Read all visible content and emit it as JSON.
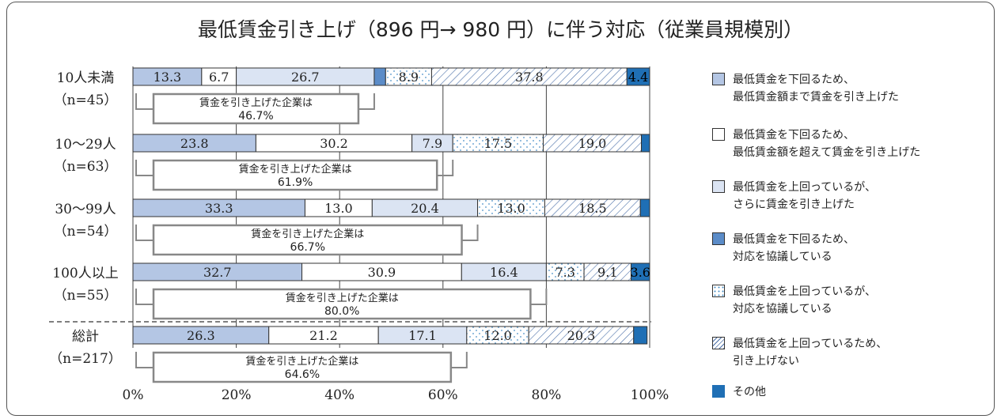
{
  "title": "最低賃金引き上げ（896 円→ 980 円）に伴う対応（従業員規模別）",
  "colors": {
    "seg1": "#b4c6e4",
    "seg2": "#ffffff",
    "seg3": "#dbe4f3",
    "seg4": "#5b8cc8",
    "seg5_dots": "#4a90c8",
    "seg6_hatch": "#4a6fa8",
    "seg7": "#1f6fb5",
    "border": "#333333"
  },
  "legend": [
    {
      "label": "最低賃金を下回るため、\n最低賃金額まで賃金を引き上げた",
      "style": "seg1"
    },
    {
      "label": "最低賃金を下回るため、\n最低賃金額を超えて賃金を引き上げた",
      "style": "seg2"
    },
    {
      "label": "最低賃金を上回っているが、\nさらに賃金を引き上げた",
      "style": "seg3"
    },
    {
      "label": "最低賃金を下回るため、\n対応を協議している",
      "style": "seg4"
    },
    {
      "label": "最低賃金を上回っているが、\n対応を協議している",
      "style": "seg5"
    },
    {
      "label": "最低賃金を上回っているため、\n引き上げない",
      "style": "seg6"
    },
    {
      "label": "その他",
      "style": "seg7"
    }
  ],
  "chart_data": {
    "type": "bar",
    "orientation": "horizontal-stacked-100",
    "title": "最低賃金引き上げ（896 円→ 980 円）に伴う対応（従業員規模別）",
    "xlim": [
      0,
      100
    ],
    "x_ticks": [
      "0%",
      "20%",
      "40%",
      "60%",
      "80%",
      "100%"
    ],
    "grid": true,
    "legend_position": "right",
    "categories": [
      {
        "name": "10人未満",
        "n": "（n=45）"
      },
      {
        "name": "10〜29人",
        "n": "（n=63）"
      },
      {
        "name": "30〜99人",
        "n": "（n=54）"
      },
      {
        "name": "100人以上",
        "n": "（n=55）"
      },
      {
        "name": "総計",
        "n": "（n=217）"
      }
    ],
    "series": [
      {
        "name": "最低賃金を下回るため、最低賃金額まで賃金を引き上げた",
        "values": [
          13.3,
          23.8,
          33.3,
          32.7,
          26.3
        ],
        "labels": [
          "13.3",
          "23.8",
          "33.3",
          "32.7",
          "26.3"
        ]
      },
      {
        "name": "最低賃金を下回るため、最低賃金額を超えて賃金を引き上げた",
        "values": [
          6.7,
          30.2,
          13.0,
          30.9,
          21.2
        ],
        "labels": [
          "6.7",
          "30.2",
          "13.0",
          "30.9",
          "21.2"
        ]
      },
      {
        "name": "最低賃金を上回っているが、さらに賃金を引き上げた",
        "values": [
          26.7,
          7.9,
          20.4,
          16.4,
          17.1
        ],
        "labels": [
          "26.7",
          "7.9",
          "20.4",
          "16.4",
          "17.1"
        ]
      },
      {
        "name": "最低賃金を下回るため、対応を協議している",
        "values": [
          2.2,
          0,
          0,
          0,
          0
        ],
        "labels": [
          "",
          "",
          "",
          "",
          ""
        ]
      },
      {
        "name": "最低賃金を上回っているが、対応を協議している",
        "values": [
          8.9,
          17.5,
          13.0,
          7.3,
          12.0
        ],
        "labels": [
          "8.9",
          "17.5",
          "13.0",
          "7.3",
          "12.0"
        ]
      },
      {
        "name": "最低賃金を上回っているため、引き上げない",
        "values": [
          37.8,
          19.0,
          18.5,
          9.1,
          20.3
        ],
        "labels": [
          "37.8",
          "19.0",
          "18.5",
          "9.1",
          "20.3"
        ]
      },
      {
        "name": "その他",
        "values": [
          4.4,
          1.6,
          1.8,
          3.6,
          2.6
        ],
        "labels": [
          "4.4",
          "",
          "",
          "3.6",
          ""
        ]
      }
    ],
    "summary_boxes": [
      {
        "line1": "賃金を引き上げた企業は",
        "line2": "46.7%",
        "value": 46.7
      },
      {
        "line1": "賃金を引き上げた企業は",
        "line2": "61.9%",
        "value": 61.9
      },
      {
        "line1": "賃金を引き上げた企業は",
        "line2": "66.7%",
        "value": 66.7
      },
      {
        "line1": "賃金を引き上げた企業は",
        "line2": "80.0%",
        "value": 80.0
      },
      {
        "line1": "賃金を引き上げた企業は",
        "line2": "64.6%",
        "value": 64.6
      }
    ]
  }
}
